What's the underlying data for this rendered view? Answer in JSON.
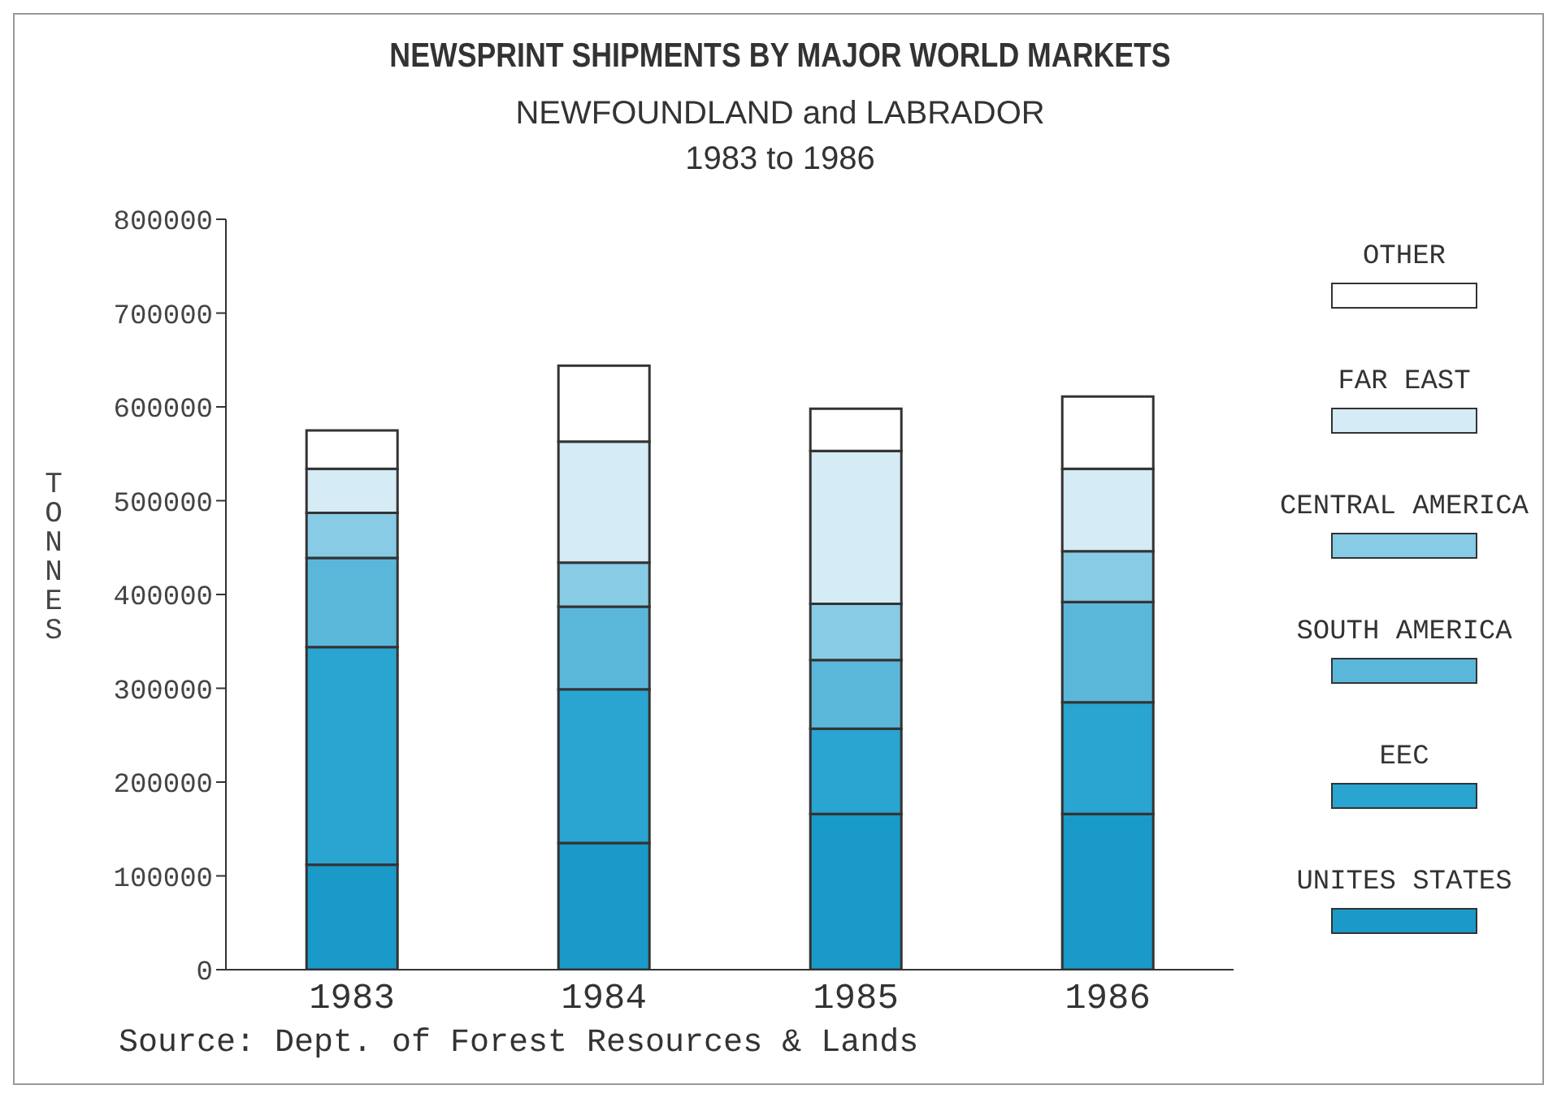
{
  "chart_data": {
    "type": "bar",
    "title": "NEWSPRINT SHIPMENTS BY MAJOR WORLD MARKETS",
    "subtitle": "NEWFOUNDLAND and LABRADOR\n1983 to 1986",
    "ylabel": "TONNES",
    "categories": [
      "1983",
      "1984",
      "1985",
      "1986"
    ],
    "stacked": true,
    "legend": "right",
    "ylim": [
      0,
      800000
    ],
    "yticks": [
      0,
      100000,
      200000,
      300000,
      400000,
      500000,
      600000,
      700000,
      800000
    ],
    "series": [
      {
        "name": "UNITES STATES",
        "color": "#1a9ac8",
        "values": [
          112000,
          135000,
          166000,
          166000
        ]
      },
      {
        "name": "EEC",
        "color": "#2aa4d0",
        "values": [
          232000,
          164000,
          91000,
          119000
        ]
      },
      {
        "name": "SOUTH AMERICA",
        "color": "#5bb7da",
        "values": [
          95000,
          88000,
          73000,
          107000
        ]
      },
      {
        "name": "CENTRAL AMERICA",
        "color": "#88cbe5",
        "values": [
          48000,
          47000,
          60000,
          54000
        ]
      },
      {
        "name": "FAR EAST",
        "color": "#d5ebf5",
        "values": [
          47000,
          129000,
          163000,
          88000
        ]
      },
      {
        "name": "OTHER",
        "color": "#ffffff",
        "values": [
          41000,
          81000,
          45000,
          77000
        ]
      }
    ],
    "annotations": [
      "Source: Dept. of Forest Resources & Lands"
    ]
  }
}
